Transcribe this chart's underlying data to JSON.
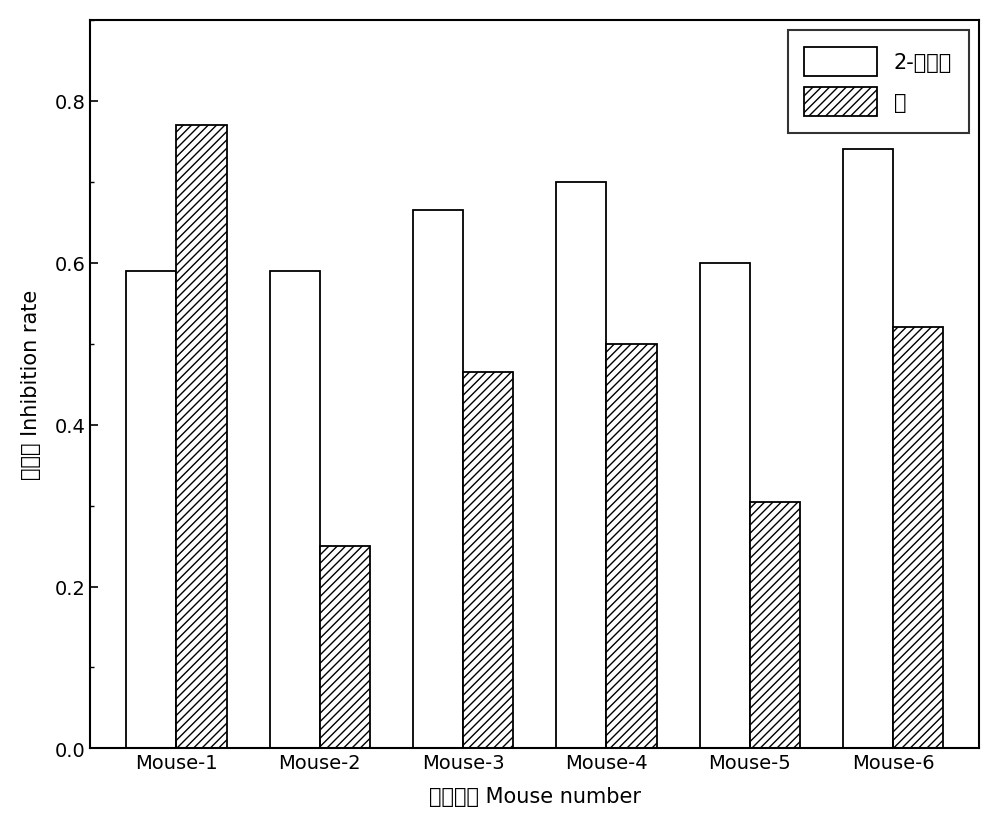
{
  "categories": [
    "Mouse-1",
    "Mouse-2",
    "Mouse-3",
    "Mouse-4",
    "Mouse-5",
    "Mouse-6"
  ],
  "series1_label": "2-萌丁酸",
  "series2_label": "萌",
  "series1_values": [
    0.59,
    0.59,
    0.665,
    0.7,
    0.6,
    0.74
  ],
  "series2_values": [
    0.77,
    0.25,
    0.465,
    0.5,
    0.305,
    0.52
  ],
  "bar_width": 0.35,
  "ylim": [
    0.0,
    0.9
  ],
  "yticks": [
    0.0,
    0.2,
    0.4,
    0.6,
    0.8
  ],
  "ytick_labels": [
    "0.0",
    "0.2",
    "0.4",
    "0.6",
    "0.8"
  ],
  "xlabel_cn": "小鼠编号",
  "xlabel_en": " Mouse number",
  "ylabel_cn": "抑制率",
  "ylabel_en": " Inhibition rate",
  "series1_color": "white",
  "series1_edgecolor": "black",
  "series2_hatch": "////",
  "series2_facecolor": "white",
  "series2_edgecolor": "black",
  "legend_loc": "upper right",
  "figsize": [
    10.0,
    8.28
  ],
  "dpi": 100
}
